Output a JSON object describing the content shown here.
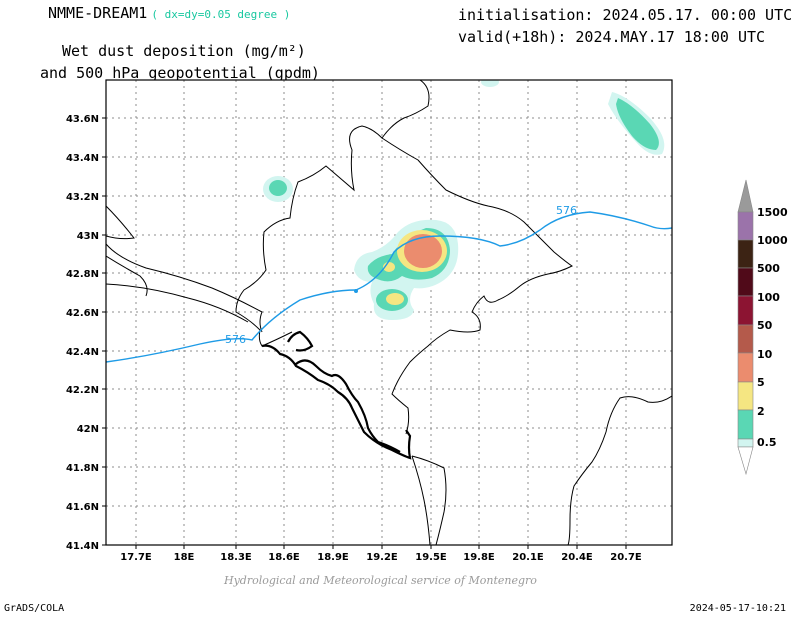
{
  "header": {
    "model_name": "NMME-DREAM1",
    "resolution": "( dx=dy=0.05 degree )",
    "variable_line1": "Wet dust deposition (mg/m²)",
    "variable_line2": "and 500 hPa geopotential (gpdm)",
    "initialisation": "initialisation: 2024.05.17. 00:00 UTC",
    "valid": "valid(+18h): 2024.MAY.17 18:00 UTC"
  },
  "map": {
    "lat_ticks": [
      "43.6N",
      "43.4N",
      "43.2N",
      "43N",
      "42.8N",
      "42.6N",
      "42.4N",
      "42.2N",
      "42N",
      "41.8N",
      "41.6N",
      "41.4N"
    ],
    "lon_ticks": [
      "17.7E",
      "18E",
      "18.3E",
      "18.6E",
      "18.9E",
      "19.2E",
      "19.5E",
      "19.8E",
      "20.1E",
      "20.4E",
      "20.7E"
    ],
    "contour_labels": [
      "576",
      "576"
    ]
  },
  "legend": {
    "levels": [
      "0.5",
      "2",
      "5",
      "10",
      "50",
      "100",
      "500",
      "1000",
      "1500"
    ],
    "colors": [
      "#d2f5f0",
      "#5ad7b4",
      "#f5e682",
      "#eb8c6e",
      "#b45a4b",
      "#8c1432",
      "#500a19",
      "#3c2314",
      "#9b73aa"
    ],
    "arrow_top_color": "#9a9a9a",
    "arrow_bottom_color": "#ffffff"
  },
  "footer": {
    "credit": "Hydrological and Meteorological service of Montenegro",
    "software": "GrADS/COLA",
    "timestamp": "2024-05-17-10:21"
  }
}
